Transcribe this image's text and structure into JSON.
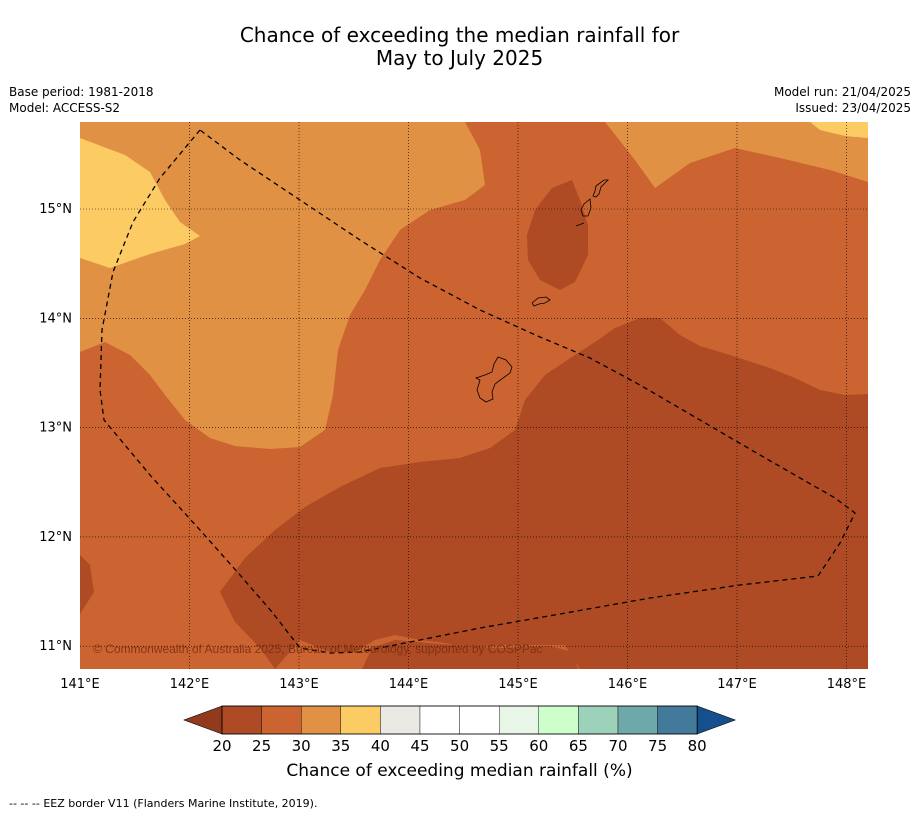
{
  "title": {
    "line1": "Chance of exceeding the median rainfall for",
    "line2": "May to July 2025"
  },
  "meta": {
    "base_period": "Base period: 1981-2018",
    "model": "Model: ACCESS-S2",
    "model_run": "Model run: 21/04/2025",
    "issued": "Issued: 23/04/2025"
  },
  "map": {
    "lon_labels": [
      "141°E",
      "142°E",
      "143°E",
      "144°E",
      "145°E",
      "146°E",
      "147°E",
      "148°E"
    ],
    "lat_labels": [
      "15°N",
      "14°N",
      "13°N",
      "12°N",
      "11°N"
    ],
    "copyright": "© Commonwealth of Australia 2025, Bureau of Meteorology, supported by COSPPac",
    "category_colors": {
      "20-25": "#ae4a24",
      "25-30": "#cb6431",
      "30-35": "#e09143",
      "35-40": "#fdcb64"
    },
    "eez_border_style": "dashed"
  },
  "colorbar": {
    "ticks": [
      "20",
      "25",
      "30",
      "35",
      "40",
      "45",
      "50",
      "55",
      "60",
      "65",
      "70",
      "75",
      "80"
    ],
    "colors": [
      "#ae4a24",
      "#cb6431",
      "#e09143",
      "#fdcb64",
      "#ece8e4",
      "#ffffff",
      "#ffffff",
      "#e8f6e8",
      "#ccffcc",
      "#9bd2b9",
      "#6fa8a8",
      "#43799b"
    ],
    "under_color": "#8f3b1c",
    "over_color": "#16508c",
    "label": "Chance of exceeding median rainfall (%)"
  },
  "footer": {
    "legend_symbol": "-- -- --",
    "text": "EEZ border V11 (Flanders Marine Institute, 2019)."
  }
}
